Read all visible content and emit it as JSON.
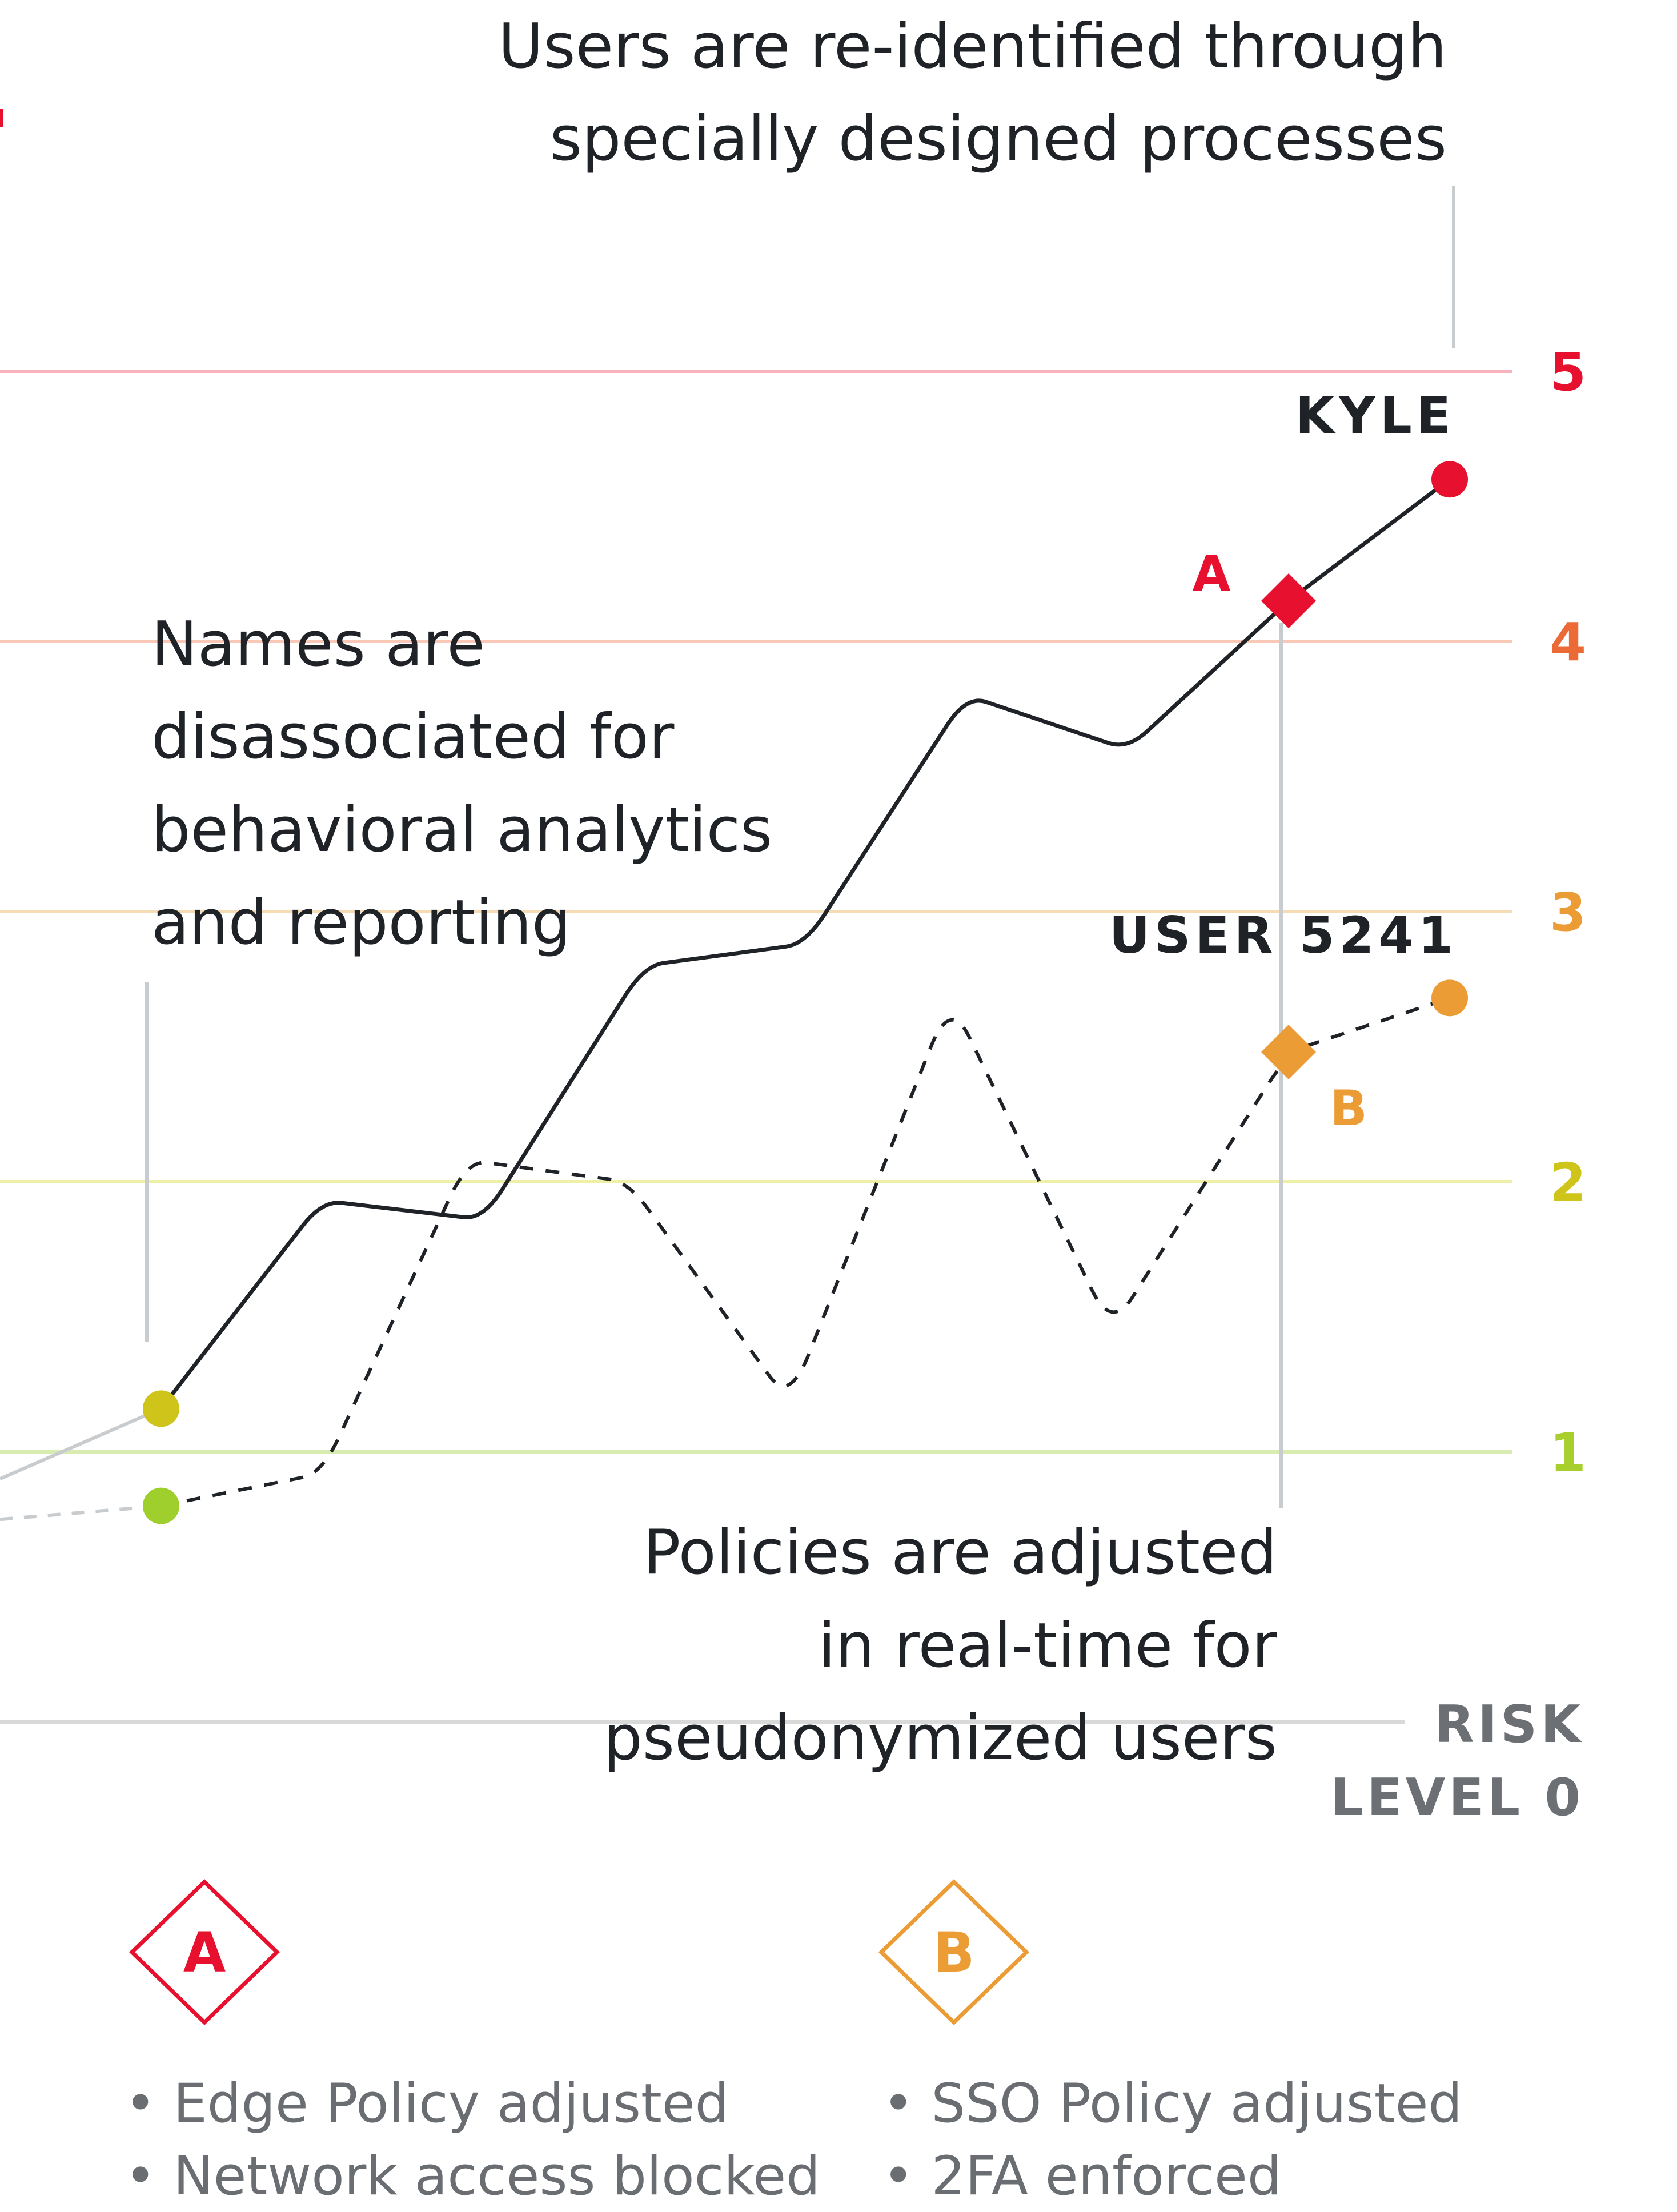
{
  "chart_data": {
    "type": "line",
    "title": "",
    "xlabel": "",
    "ylabel": "RISK LEVEL 0",
    "ylabel_lines": [
      "RISK",
      "LEVEL 0"
    ],
    "ylim": [
      0,
      5.2
    ],
    "yticks": [
      {
        "label": "1",
        "value": 1,
        "color": "#a8cf2e",
        "line_color": "#d8ebb0"
      },
      {
        "label": "2",
        "value": 2,
        "color": "#cfc51a",
        "line_color": "#eef0a6"
      },
      {
        "label": "3",
        "value": 3,
        "color": "#eb9c35",
        "line_color": "#f6dcb4"
      },
      {
        "label": "4",
        "value": 4,
        "color": "#ec6a35",
        "line_color": "#f9c8b7"
      },
      {
        "label": "5",
        "value": 5,
        "color": "#e8102f",
        "line_color": "#f7b2bd"
      }
    ],
    "series": [
      {
        "name": "KYLE",
        "style": "solid",
        "color": "#1f2328",
        "start_point_color": "#cfc51a",
        "end_point_color": "#e8102f",
        "x": [
          0.0,
          1.0,
          2.0,
          3.0,
          4.0,
          5.0,
          6.0,
          7.0,
          8.0,
          9.0
        ],
        "y": [
          0.9,
          1.16,
          1.93,
          1.86,
          2.8,
          2.88,
          3.8,
          3.6,
          4.15,
          4.6
        ]
      },
      {
        "name": "USER 5241",
        "style": "dashed",
        "color": "#1f2328",
        "start_point_color": "#9fcf2c",
        "end_point_color": "#eb9c35",
        "x": [
          0.0,
          1.0,
          2.0,
          2.9,
          3.9,
          4.9,
          5.9,
          6.9,
          8.0,
          9.0
        ],
        "y": [
          0.75,
          0.8,
          0.92,
          2.08,
          2.0,
          1.18,
          2.68,
          1.45,
          2.48,
          2.68
        ]
      }
    ],
    "markers": [
      {
        "label": "A",
        "series": "KYLE",
        "x": 8.0,
        "y": 4.15,
        "color": "#e8102f"
      },
      {
        "label": "B",
        "series": "USER 5241",
        "x": 8.0,
        "y": 2.48,
        "color": "#eb9c35"
      }
    ]
  },
  "annotations": {
    "top": [
      "Users are re-identified through",
      "specially designed processes"
    ],
    "middle": [
      "Names are",
      "disassociated for",
      "behavioral analytics",
      "and reporting"
    ],
    "bottom": [
      "Policies are adjusted",
      "in real-time for",
      "pseudonymized users"
    ]
  },
  "legend": {
    "A": {
      "letter": "A",
      "color": "#e8102f",
      "items": [
        "• Edge Policy adjusted",
        "• Network access blocked"
      ]
    },
    "B": {
      "letter": "B",
      "color": "#eb9c35",
      "items": [
        "• SSO Policy adjusted",
        "• 2FA enforced"
      ]
    }
  }
}
